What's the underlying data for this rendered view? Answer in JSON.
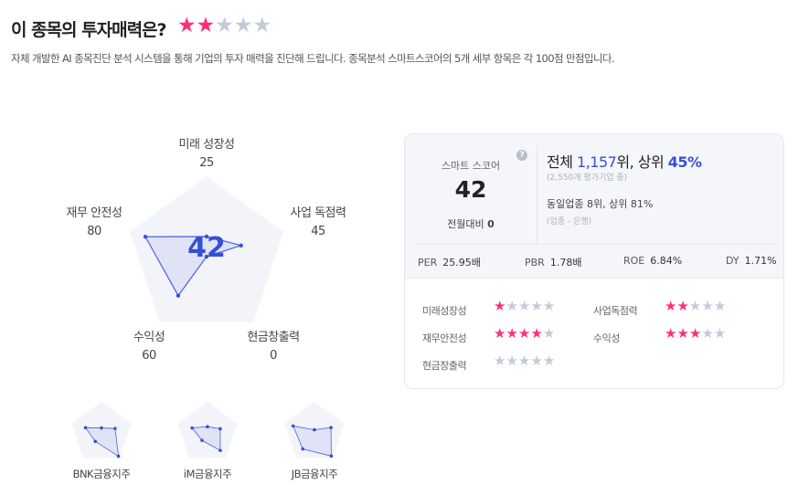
{
  "header": {
    "title": "이 종목의 투자매력은?",
    "rating": 2,
    "max_rating": 5,
    "description": "자체 개발한 AI 종목진단 분석 시스템을 통해 기업의 투자 매력을 진단해 드립니다. 종목분석 스마트스코어의 5개 세부 항목은 각 100점 만점입니다."
  },
  "colors": {
    "accent": "#3450d6",
    "star_on": "#ff2e78",
    "star_off": "#c3cad9"
  },
  "radar": {
    "score": "42",
    "axes": [
      {
        "label": "미래 성장성",
        "value": 25
      },
      {
        "label": "사업 독점력",
        "value": 45
      },
      {
        "label": "현금창출력",
        "value": 0
      },
      {
        "label": "수익성",
        "value": 60
      },
      {
        "label": "재무 안전성",
        "value": 80
      }
    ]
  },
  "peers": [
    {
      "name": "BNK금융지주",
      "values": [
        16,
        46,
        93,
        34,
        54
      ]
    },
    {
      "name": "iM금융지주",
      "values": [
        20,
        43,
        70,
        30,
        52
      ]
    },
    {
      "name": "JB금융지주",
      "values": [
        10,
        56,
        92,
        64,
        72
      ]
    }
  ],
  "card": {
    "smart_label": "스마트 스코어",
    "help_icon": "question-circle-icon",
    "score": "42",
    "mom_label": "전월대비",
    "mom_value": "0",
    "rank_prefix": "전체 ",
    "rank": "1,157",
    "rank_mid": "위, 상위 ",
    "rank_pct": "45%",
    "rank_sub": "(2,550개 평가기업 중)",
    "industry_rank": "동일업종 8위, 상위 81%",
    "industry_sub": "(업종 - 은행)",
    "metrics": [
      {
        "label": "PER",
        "value": "25.95배"
      },
      {
        "label": "PBR",
        "value": "1.78배"
      },
      {
        "label": "ROE",
        "value": "6.84%"
      },
      {
        "label": "DY",
        "value": "1.71%"
      }
    ],
    "ratings": [
      {
        "label": "미래성장성",
        "stars": 1
      },
      {
        "label": "사업독점력",
        "stars": 2
      },
      {
        "label": "재무안전성",
        "stars": 4
      },
      {
        "label": "수익성",
        "stars": 3
      },
      {
        "label": "현금창출력",
        "stars": 0
      }
    ]
  }
}
